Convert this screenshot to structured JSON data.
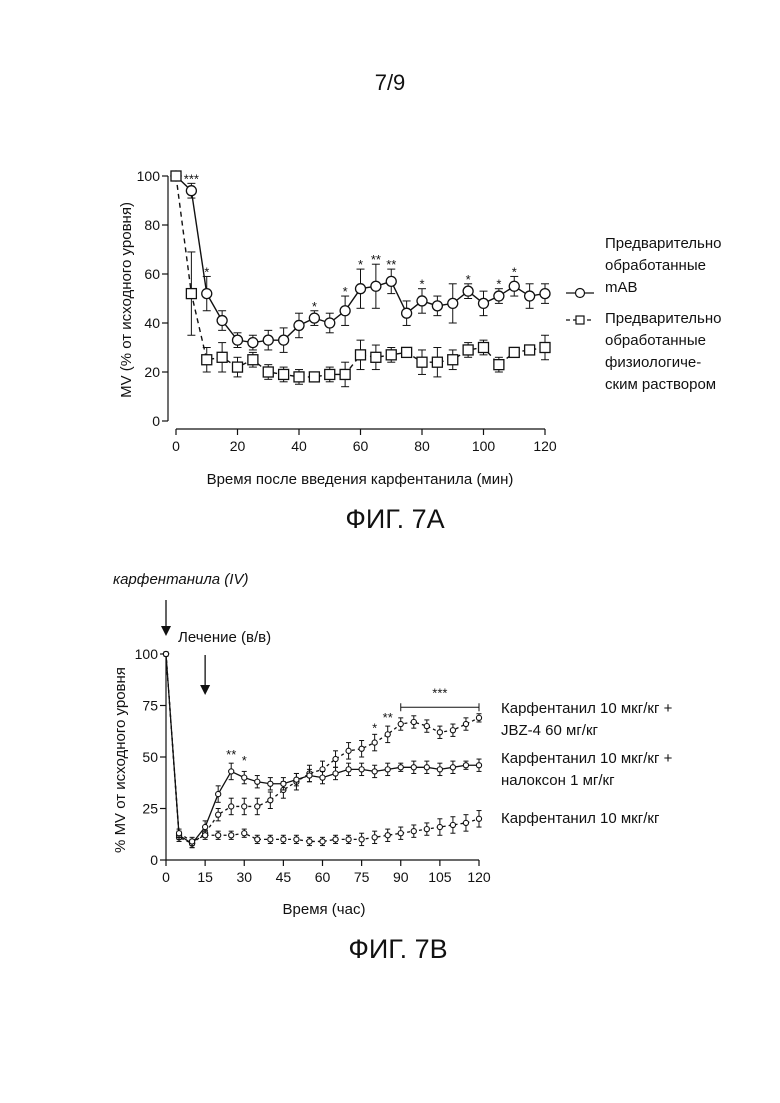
{
  "page_number": "7/9",
  "figures": [
    {
      "caption": "ФИГ. 7А",
      "xlabel": "Время после введения карфентанила (мин)",
      "ylabel": "MV (% от исходного уровня)",
      "legend": [
        {
          "lines": [
            "Предварительно",
            "обработанные",
            "mAB"
          ],
          "marker": "circle",
          "style": "solid"
        },
        {
          "lines": [
            "Предварительно",
            "обработанные",
            "физиологиче-",
            "ским раствором"
          ],
          "marker": "square",
          "style": "dashed"
        }
      ]
    },
    {
      "caption": "ФИГ. 7В",
      "xlabel": "Время (час)",
      "ylabel": "% MV от исходного уровня",
      "annotation_top": "карфентанила (IV)",
      "annotation_treatment": "Лечение (в/в)",
      "legend": [
        {
          "lines": [
            "Карфентанил 10 мкг/кг +",
            "JBZ-4 60 мг/кг"
          ]
        },
        {
          "lines": [
            "Карфентанил 10 мкг/кг +",
            "налоксон 1 мг/кг"
          ]
        },
        {
          "lines": [
            "Карфентанил 10 мкг/кг"
          ]
        }
      ]
    }
  ],
  "chart_data": [
    {
      "type": "line",
      "xlabel": "Время после введения карфентанила (мин)",
      "ylabel": "MV (% от исходного уровня)",
      "xlim": [
        0,
        120
      ],
      "ylim": [
        0,
        100
      ],
      "xticks": [
        0,
        20,
        40,
        60,
        80,
        100,
        120
      ],
      "yticks": [
        0,
        20,
        40,
        60,
        80,
        100
      ],
      "series": [
        {
          "name": "Предварительно обработанные mAB",
          "marker": "circle",
          "line": "solid",
          "x": [
            0,
            5,
            10,
            15,
            20,
            25,
            30,
            35,
            40,
            45,
            50,
            55,
            60,
            65,
            70,
            75,
            80,
            85,
            90,
            95,
            100,
            105,
            110,
            115,
            120
          ],
          "y": [
            100,
            94,
            52,
            41,
            33,
            32,
            33,
            33,
            39,
            42,
            40,
            45,
            54,
            55,
            57,
            44,
            49,
            47,
            48,
            53,
            48,
            51,
            55,
            51,
            52
          ],
          "err": [
            1,
            3,
            7,
            4,
            3,
            3,
            4,
            5,
            5,
            3,
            4,
            6,
            8,
            9,
            5,
            5,
            5,
            4,
            8,
            3,
            5,
            3,
            4,
            5,
            4
          ]
        },
        {
          "name": "Предварительно обработанные физиологическим раствором",
          "marker": "square",
          "line": "dashed",
          "x": [
            0,
            5,
            10,
            15,
            20,
            25,
            30,
            35,
            40,
            45,
            50,
            55,
            60,
            65,
            70,
            75,
            80,
            85,
            90,
            95,
            100,
            105,
            110,
            115,
            120
          ],
          "y": [
            100,
            52,
            25,
            26,
            22,
            25,
            20,
            19,
            18,
            18,
            19,
            19,
            27,
            26,
            27,
            28,
            24,
            24,
            25,
            29,
            30,
            23,
            28,
            29,
            30
          ],
          "err": [
            1,
            17,
            5,
            6,
            4,
            3,
            3,
            3,
            3,
            2,
            3,
            5,
            6,
            5,
            3,
            2,
            5,
            6,
            4,
            3,
            3,
            3,
            2,
            2,
            5
          ]
        }
      ],
      "significance": [
        {
          "x": 5,
          "y": 97,
          "label": "***"
        },
        {
          "x": 10,
          "y": 59,
          "label": "*"
        },
        {
          "x": 45,
          "y": 45,
          "label": "*"
        },
        {
          "x": 55,
          "y": 51,
          "label": "*"
        },
        {
          "x": 60,
          "y": 62,
          "label": "*"
        },
        {
          "x": 65,
          "y": 64,
          "label": "**"
        },
        {
          "x": 70,
          "y": 62,
          "label": "**"
        },
        {
          "x": 80,
          "y": 54,
          "label": "*"
        },
        {
          "x": 95,
          "y": 56,
          "label": "*"
        },
        {
          "x": 105,
          "y": 54,
          "label": "*"
        },
        {
          "x": 110,
          "y": 59,
          "label": "*"
        }
      ]
    },
    {
      "type": "line",
      "xlabel": "Время (час)",
      "ylabel": "% MV от исходного уровня",
      "xlim": [
        0,
        120
      ],
      "ylim": [
        0,
        100
      ],
      "xticks": [
        0,
        15,
        30,
        45,
        60,
        75,
        90,
        105,
        120
      ],
      "yticks": [
        0,
        25,
        50,
        75,
        100
      ],
      "series": [
        {
          "name": "Карфентанил 10 мкг/кг + JBZ-4 60 мг/кг",
          "line": "dashed",
          "x": [
            0,
            5,
            10,
            15,
            20,
            25,
            30,
            35,
            40,
            45,
            50,
            55,
            60,
            65,
            70,
            75,
            80,
            85,
            90,
            95,
            100,
            105,
            110,
            115,
            120
          ],
          "y": [
            100,
            11,
            8,
            13,
            22,
            26,
            26,
            26,
            29,
            34,
            38,
            42,
            44,
            49,
            53,
            54,
            57,
            61,
            66,
            67,
            65,
            62,
            63,
            66,
            69
          ],
          "err": [
            1,
            2,
            2,
            2,
            3,
            4,
            4,
            4,
            4,
            4,
            4,
            4,
            4,
            4,
            4,
            4,
            4,
            4,
            3,
            3,
            3,
            3,
            3,
            3,
            2
          ]
        },
        {
          "name": "Карфентанил 10 мкг/кг + налоксон 1 мг/кг",
          "line": "solid",
          "x": [
            0,
            5,
            10,
            15,
            20,
            25,
            30,
            35,
            40,
            45,
            50,
            55,
            60,
            65,
            70,
            75,
            80,
            85,
            90,
            95,
            100,
            105,
            110,
            115,
            120
          ],
          "y": [
            100,
            12,
            8,
            16,
            32,
            43,
            40,
            38,
            37,
            37,
            39,
            41,
            40,
            42,
            44,
            44,
            43,
            44,
            45,
            45,
            45,
            44,
            45,
            46,
            46
          ],
          "err": [
            1,
            2,
            2,
            3,
            4,
            4,
            3,
            3,
            3,
            3,
            3,
            3,
            3,
            3,
            3,
            3,
            3,
            3,
            2,
            3,
            3,
            3,
            3,
            2,
            3
          ]
        },
        {
          "name": "Карфентанил 10 мкг/кг",
          "line": "dashed",
          "x": [
            0,
            5,
            10,
            15,
            20,
            25,
            30,
            35,
            40,
            45,
            50,
            55,
            60,
            65,
            70,
            75,
            80,
            85,
            90,
            95,
            100,
            105,
            110,
            115,
            120
          ],
          "y": [
            100,
            13,
            9,
            12,
            12,
            12,
            13,
            10,
            10,
            10,
            10,
            9,
            9,
            10,
            10,
            10,
            11,
            12,
            13,
            14,
            15,
            16,
            17,
            18,
            20
          ],
          "err": [
            1,
            2,
            2,
            2,
            2,
            2,
            2,
            2,
            2,
            2,
            2,
            2,
            2,
            2,
            2,
            3,
            3,
            3,
            3,
            3,
            3,
            4,
            4,
            4,
            4
          ]
        }
      ],
      "significance": [
        {
          "x": 25,
          "y": 49,
          "label": "**"
        },
        {
          "x": 30,
          "y": 46,
          "label": "*"
        },
        {
          "x": 80,
          "y": 62,
          "label": "*"
        },
        {
          "x": 85,
          "y": 67,
          "label": "**"
        },
        {
          "x": 105,
          "y": 79,
          "label": "***",
          "span": [
            90,
            120
          ]
        }
      ],
      "arrows": [
        {
          "x": 0,
          "label": "карфентанила (IV)"
        },
        {
          "x": 15,
          "label": "Лечение (в/в)"
        }
      ]
    }
  ]
}
